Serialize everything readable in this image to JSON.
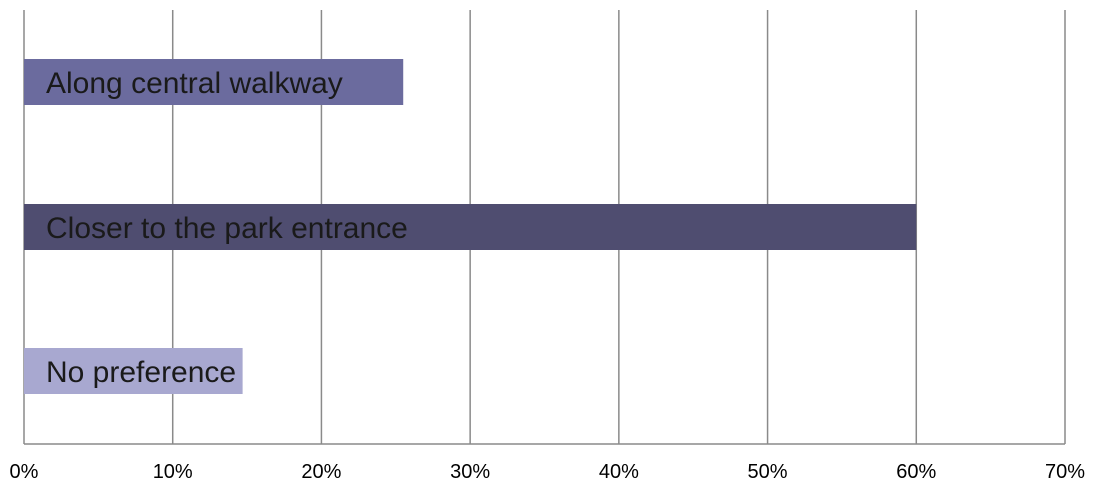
{
  "chart_data": {
    "type": "bar",
    "orientation": "horizontal",
    "categories": [
      "Along central walkway",
      "Closer to the park entrance",
      "No preference"
    ],
    "values": [
      25.5,
      60,
      14.7
    ],
    "bar_colors": [
      "#6b6b9e",
      "#4f4d70",
      "#a8a8d0"
    ],
    "xlim": [
      0,
      70
    ],
    "x_ticks": [
      0,
      10,
      20,
      30,
      40,
      50,
      60,
      70
    ],
    "x_tick_labels": [
      "0%",
      "10%",
      "20%",
      "30%",
      "40%",
      "50%",
      "60%",
      "70%"
    ],
    "grid": "vertical",
    "legend": "none",
    "labels_inside_bars": true
  }
}
